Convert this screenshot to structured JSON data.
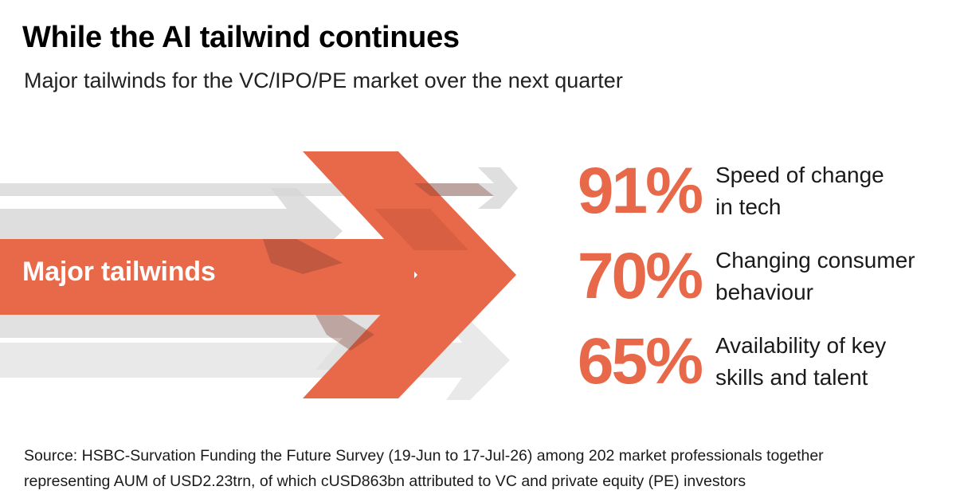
{
  "header": {
    "title": "While the AI tailwind continues",
    "subtitle": "Major tailwinds for the VC/IPO/PE market over the next quarter"
  },
  "hero": {
    "label": "Major tailwinds"
  },
  "stats": [
    {
      "value": "91%",
      "label_line1": "Speed of change",
      "label_line2": "in tech"
    },
    {
      "value": "70%",
      "label_line1": "Changing consumer",
      "label_line2": "behaviour"
    },
    {
      "value": "65%",
      "label_line1": "Availability of key",
      "label_line2": "skills and talent"
    }
  ],
  "footer": {
    "source_line1": "Source: HSBC-Survation Funding the Future Survey (19-Jun to 17-Jul-26) among 202 market professionals together",
    "source_line2": "representing AUM of USD2.23trn, of which cUSD863bn attributed to VC and private equity (PE) investors"
  },
  "colors": {
    "accent": "#E8694A",
    "accent_dark": "#C9553B",
    "grey_arrow": "#D6D6D6",
    "text": "#1a1a1a"
  }
}
